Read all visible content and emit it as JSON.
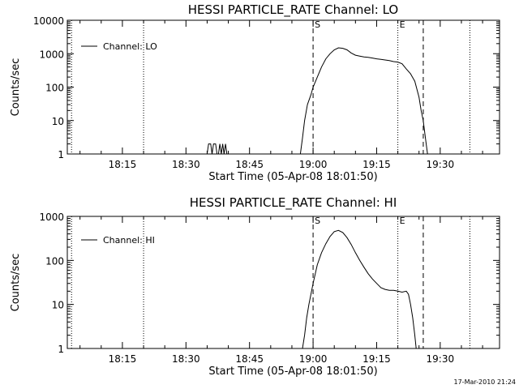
{
  "footer": {
    "timestamp": "17-Mar-2010 21:24"
  },
  "chart_data": [
    {
      "type": "line",
      "title": "HESSI PARTICLE_RATE Channel: LO",
      "xlabel": "Start Time (05-Apr-08 18:01:50)",
      "ylabel": "Counts/sec",
      "ylog": true,
      "xlim": [
        "18:02:00",
        "19:44:00"
      ],
      "ylim": [
        1,
        10000
      ],
      "xticks": [
        "18:15",
        "18:30",
        "18:45",
        "19:00",
        "19:15",
        "19:30"
      ],
      "yticks": [
        "1",
        "10",
        "100",
        "1000",
        "10000"
      ],
      "legend": {
        "position": "top-left",
        "entries": [
          "Channel: LO"
        ]
      },
      "markers": [
        {
          "label": "",
          "time": "18:03:00",
          "style": "dotted"
        },
        {
          "label": "",
          "time": "18:20:00",
          "style": "dotted"
        },
        {
          "label": "S",
          "time": "19:00:00",
          "style": "dashed"
        },
        {
          "label": "E",
          "time": "19:20:00",
          "style": "dotted"
        },
        {
          "label": "",
          "time": "19:26:00",
          "style": "dashed"
        },
        {
          "label": "",
          "time": "19:37:00",
          "style": "dotted"
        }
      ],
      "series": [
        {
          "name": "Channel: LO",
          "points": [
            [
              "18:35:00",
              1
            ],
            [
              "18:35:20",
              2
            ],
            [
              "18:35:50",
              2
            ],
            [
              "18:36:10",
              1
            ],
            [
              "18:36:30",
              2
            ],
            [
              "18:37:00",
              2
            ],
            [
              "18:37:20",
              1
            ],
            [
              "18:37:40",
              1
            ],
            [
              "18:38:00",
              2
            ],
            [
              "18:38:20",
              1
            ],
            [
              "18:38:40",
              2
            ],
            [
              "18:39:00",
              1
            ],
            [
              "18:39:20",
              2
            ],
            [
              "18:39:40",
              1
            ],
            [
              "18:57:00",
              1
            ],
            [
              "18:57:30",
              3
            ],
            [
              "18:58:00",
              10
            ],
            [
              "18:58:40",
              30
            ],
            [
              "18:59:30",
              60
            ],
            [
              "19:00:00",
              100
            ],
            [
              "19:01:00",
              200
            ],
            [
              "19:02:00",
              400
            ],
            [
              "19:03:00",
              700
            ],
            [
              "19:04:00",
              1000
            ],
            [
              "19:05:00",
              1300
            ],
            [
              "19:06:00",
              1500
            ],
            [
              "19:07:00",
              1450
            ],
            [
              "19:08:00",
              1300
            ],
            [
              "19:09:00",
              1050
            ],
            [
              "19:10:00",
              900
            ],
            [
              "19:11:00",
              850
            ],
            [
              "19:12:00",
              800
            ],
            [
              "19:13:00",
              780
            ],
            [
              "19:14:00",
              740
            ],
            [
              "19:15:00",
              700
            ],
            [
              "19:16:00",
              680
            ],
            [
              "19:17:00",
              650
            ],
            [
              "19:18:00",
              620
            ],
            [
              "19:19:00",
              580
            ],
            [
              "19:20:00",
              560
            ],
            [
              "19:21:00",
              500
            ],
            [
              "19:22:00",
              350
            ],
            [
              "19:23:00",
              250
            ],
            [
              "19:24:00",
              150
            ],
            [
              "19:25:00",
              50
            ],
            [
              "19:25:30",
              20
            ],
            [
              "19:26:00",
              10
            ],
            [
              "19:26:30",
              3
            ],
            [
              "19:27:00",
              1
            ]
          ]
        }
      ]
    },
    {
      "type": "line",
      "title": "HESSI PARTICLE_RATE Channel: HI",
      "xlabel": "Start Time (05-Apr-08 18:01:50)",
      "ylabel": "Counts/sec",
      "ylog": true,
      "xlim": [
        "18:02:00",
        "19:44:00"
      ],
      "ylim": [
        1,
        1000
      ],
      "xticks": [
        "18:15",
        "18:30",
        "18:45",
        "19:00",
        "19:15",
        "19:30"
      ],
      "yticks": [
        "1",
        "10",
        "100",
        "1000"
      ],
      "legend": {
        "position": "top-left",
        "entries": [
          "Channel: HI"
        ]
      },
      "markers": [
        {
          "label": "",
          "time": "18:03:00",
          "style": "dotted"
        },
        {
          "label": "",
          "time": "18:20:00",
          "style": "dotted"
        },
        {
          "label": "S",
          "time": "19:00:00",
          "style": "dashed"
        },
        {
          "label": "E",
          "time": "19:20:00",
          "style": "dotted"
        },
        {
          "label": "",
          "time": "19:26:00",
          "style": "dashed"
        },
        {
          "label": "",
          "time": "19:37:00",
          "style": "dotted"
        }
      ],
      "series": [
        {
          "name": "Channel: HI",
          "points": [
            [
              "18:57:30",
              1
            ],
            [
              "18:58:00",
              2
            ],
            [
              "18:58:30",
              5
            ],
            [
              "18:59:00",
              10
            ],
            [
              "19:00:00",
              30
            ],
            [
              "19:01:00",
              80
            ],
            [
              "19:02:00",
              150
            ],
            [
              "19:03:00",
              240
            ],
            [
              "19:04:00",
              350
            ],
            [
              "19:05:00",
              450
            ],
            [
              "19:06:00",
              480
            ],
            [
              "19:07:00",
              430
            ],
            [
              "19:08:00",
              330
            ],
            [
              "19:09:00",
              230
            ],
            [
              "19:10:00",
              150
            ],
            [
              "19:11:00",
              100
            ],
            [
              "19:12:00",
              70
            ],
            [
              "19:13:00",
              50
            ],
            [
              "19:14:00",
              38
            ],
            [
              "19:15:00",
              30
            ],
            [
              "19:16:00",
              24
            ],
            [
              "19:17:00",
              22
            ],
            [
              "19:18:00",
              21
            ],
            [
              "19:19:00",
              21
            ],
            [
              "19:20:00",
              20
            ],
            [
              "19:21:00",
              19
            ],
            [
              "19:22:00",
              20
            ],
            [
              "19:22:30",
              17
            ],
            [
              "19:23:00",
              10
            ],
            [
              "19:23:30",
              5
            ],
            [
              "19:24:00",
              2
            ],
            [
              "19:24:20",
              1
            ]
          ]
        }
      ]
    }
  ]
}
